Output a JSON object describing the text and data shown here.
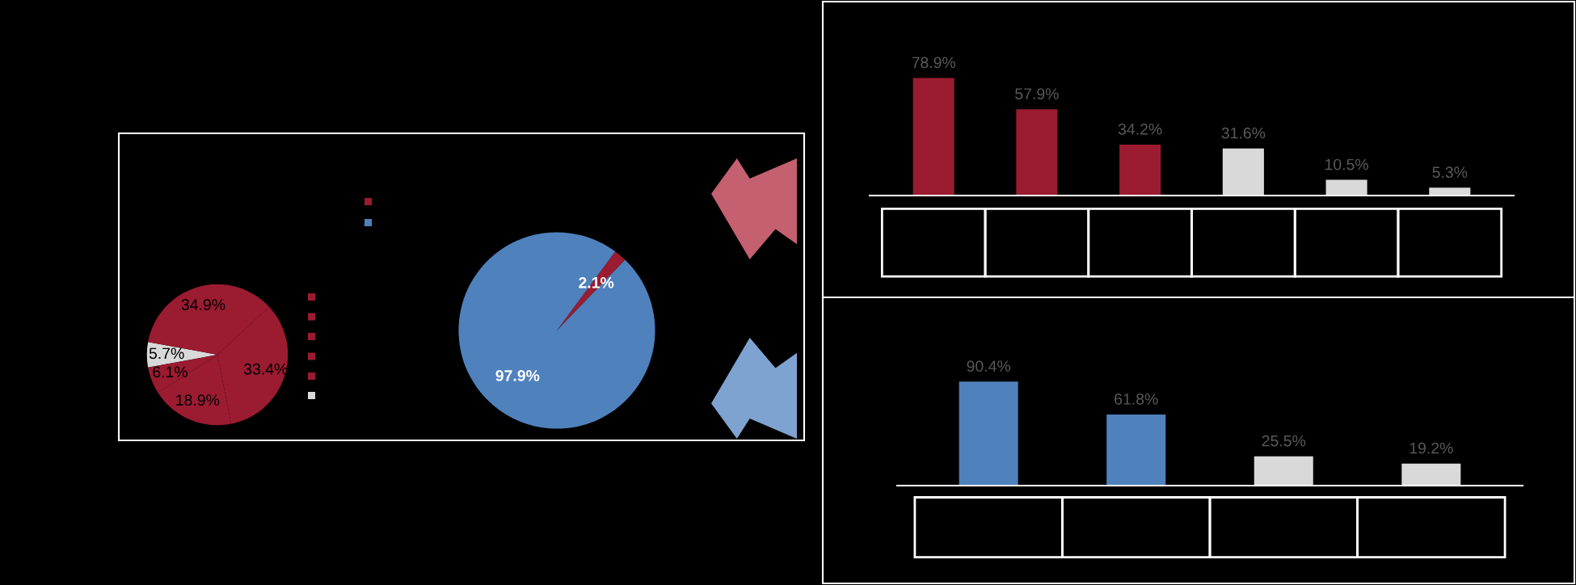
{
  "chart_data": [
    {
      "type": "pie",
      "categories": [
        null,
        null,
        null,
        null,
        null
      ],
      "values": [
        5.7,
        6.1,
        18.9,
        33.4,
        34.9
      ],
      "colors": [
        "#d9d9d9",
        "#9b1b30",
        "#9b1b30",
        "#9b1b30",
        "#9b1b30"
      ],
      "value_labels": [
        "5.7%",
        "6.1%",
        "18.9%",
        "33.4%",
        "34.9%"
      ]
    },
    {
      "type": "pie",
      "categories": [
        null,
        null
      ],
      "values": [
        2.1,
        97.9
      ],
      "colors": [
        "#9b1b30",
        "#4f81bd"
      ],
      "value_labels": [
        "2.1%",
        "97.9%"
      ]
    },
    {
      "type": "bar",
      "categories": [
        null,
        null,
        null,
        null,
        null,
        null
      ],
      "values": [
        78.9,
        57.9,
        34.2,
        31.6,
        10.5,
        5.3
      ],
      "colors": [
        "#9b1b30",
        "#9b1b30",
        "#9b1b30",
        "#d9d9d9",
        "#d9d9d9",
        "#d9d9d9"
      ],
      "value_labels": [
        "78.9%",
        "57.9%",
        "34.2%",
        "31.6%",
        "10.5%",
        "5.3%"
      ]
    },
    {
      "type": "bar",
      "categories": [
        null,
        null,
        null,
        null
      ],
      "values": [
        90.4,
        61.8,
        25.5,
        19.2
      ],
      "colors": [
        "#4f81bd",
        "#4f81bd",
        "#d9d9d9",
        "#d9d9d9"
      ],
      "value_labels": [
        "90.4%",
        "61.8%",
        "25.5%",
        "19.2%"
      ]
    }
  ]
}
